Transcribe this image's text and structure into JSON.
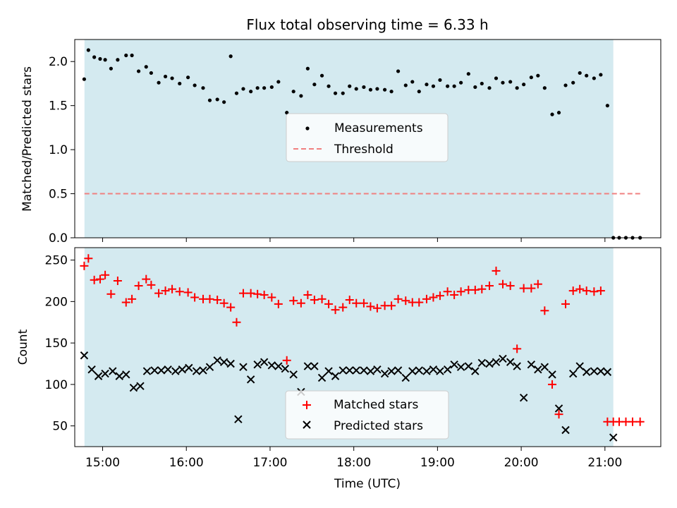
{
  "figure": {
    "title": "Flux total observing time = 6.33 h"
  },
  "chart_data": [
    {
      "type": "scatter",
      "ylabel": "Matched/Predicted stars",
      "ylim": [
        0,
        2.25
      ],
      "xlim": [
        14.667,
        21.667
      ],
      "yticks": [
        0.0,
        0.5,
        1.0,
        1.5,
        2.0
      ],
      "ytick_labels": [
        "0.0",
        "0.5",
        "1.0",
        "1.5",
        "2.0"
      ],
      "shaded_span": [
        14.783,
        21.1
      ],
      "shade_color": "#d4eaf0",
      "legend_position": "center",
      "legend": [
        {
          "label": "Measurements",
          "marker": "dot",
          "color": "#000000"
        },
        {
          "label": "Threshold",
          "marker": "dashed-line",
          "color": "#f08080"
        }
      ],
      "threshold": {
        "name": "Threshold",
        "value": 0.5,
        "x": [
          14.783,
          21.45
        ],
        "color": "#f08080"
      },
      "series": [
        {
          "name": "Measurements",
          "color": "#000000",
          "x": [
            14.78,
            14.83,
            14.9,
            14.97,
            15.03,
            15.1,
            15.18,
            15.28,
            15.35,
            15.43,
            15.52,
            15.58,
            15.67,
            15.75,
            15.83,
            15.92,
            16.02,
            16.1,
            16.2,
            16.28,
            16.37,
            16.45,
            16.53,
            16.6,
            16.68,
            16.77,
            16.85,
            16.93,
            17.02,
            17.1,
            17.2,
            17.28,
            17.37,
            17.45,
            17.53,
            17.62,
            17.7,
            17.78,
            17.87,
            17.95,
            18.03,
            18.12,
            18.2,
            18.28,
            18.37,
            18.45,
            18.53,
            18.62,
            18.7,
            18.78,
            18.87,
            18.95,
            19.03,
            19.12,
            19.2,
            19.28,
            19.37,
            19.45,
            19.53,
            19.62,
            19.7,
            19.78,
            19.87,
            19.95,
            20.03,
            20.12,
            20.2,
            20.28,
            20.37,
            20.45,
            20.53,
            20.62,
            20.7,
            20.78,
            20.87,
            20.95,
            21.03,
            21.1,
            21.17,
            21.25,
            21.33,
            21.42
          ],
          "y": [
            1.8,
            2.13,
            2.05,
            2.03,
            2.02,
            1.92,
            2.02,
            2.07,
            2.07,
            1.89,
            1.94,
            1.87,
            1.76,
            1.83,
            1.81,
            1.75,
            1.82,
            1.73,
            1.7,
            1.56,
            1.57,
            1.54,
            2.06,
            1.64,
            1.69,
            1.66,
            1.7,
            1.7,
            1.71,
            1.77,
            1.42,
            1.66,
            1.61,
            1.92,
            1.74,
            1.84,
            1.72,
            1.64,
            1.64,
            1.72,
            1.69,
            1.71,
            1.68,
            1.69,
            1.68,
            1.66,
            1.89,
            1.73,
            1.77,
            1.66,
            1.74,
            1.72,
            1.79,
            1.72,
            1.72,
            1.76,
            1.86,
            1.71,
            1.75,
            1.7,
            1.81,
            1.76,
            1.77,
            1.7,
            1.74,
            1.82,
            1.84,
            1.7,
            1.4,
            1.42,
            1.73,
            1.76,
            1.87,
            1.84,
            1.81,
            1.85,
            1.5,
            0.0,
            0.0,
            0.0,
            0.0,
            0.0
          ]
        }
      ]
    },
    {
      "type": "scatter",
      "xlabel": "Time (UTC)",
      "ylabel": "Count",
      "ylim": [
        25,
        265
      ],
      "xlim": [
        14.667,
        21.667
      ],
      "yticks": [
        50,
        100,
        150,
        200,
        250
      ],
      "ytick_labels": [
        "50",
        "100",
        "150",
        "200",
        "250"
      ],
      "xticks": [
        15,
        16,
        17,
        18,
        19,
        20,
        21
      ],
      "xtick_labels": [
        "15:00",
        "16:00",
        "17:00",
        "18:00",
        "19:00",
        "20:00",
        "21:00"
      ],
      "shaded_span": [
        14.783,
        21.1
      ],
      "shade_color": "#d4eaf0",
      "legend_position": "lower center",
      "legend": [
        {
          "label": "Matched stars",
          "marker": "plus",
          "color": "#ff0000"
        },
        {
          "label": "Predicted stars",
          "marker": "x",
          "color": "#000000"
        }
      ],
      "series": [
        {
          "name": "Matched stars",
          "marker": "plus",
          "color": "#ff0000",
          "x": [
            14.78,
            14.83,
            14.9,
            14.97,
            15.03,
            15.1,
            15.18,
            15.28,
            15.35,
            15.43,
            15.52,
            15.58,
            15.67,
            15.75,
            15.83,
            15.92,
            16.02,
            16.1,
            16.2,
            16.28,
            16.37,
            16.45,
            16.53,
            16.6,
            16.68,
            16.77,
            16.85,
            16.93,
            17.02,
            17.1,
            17.2,
            17.28,
            17.37,
            17.45,
            17.53,
            17.62,
            17.7,
            17.78,
            17.87,
            17.95,
            18.03,
            18.12,
            18.2,
            18.28,
            18.37,
            18.45,
            18.53,
            18.62,
            18.7,
            18.78,
            18.87,
            18.95,
            19.03,
            19.12,
            19.2,
            19.28,
            19.37,
            19.45,
            19.53,
            19.62,
            19.7,
            19.78,
            19.87,
            19.95,
            20.03,
            20.12,
            20.2,
            20.28,
            20.37,
            20.45,
            20.53,
            20.62,
            20.7,
            20.78,
            20.87,
            20.95,
            21.03,
            21.1,
            21.17,
            21.25,
            21.33,
            21.42
          ],
          "y": [
            243,
            252,
            226,
            227,
            232,
            209,
            225,
            199,
            203,
            219,
            227,
            220,
            210,
            213,
            215,
            212,
            211,
            205,
            203,
            203,
            202,
            198,
            193,
            175,
            210,
            210,
            209,
            208,
            205,
            197,
            129,
            201,
            198,
            208,
            202,
            203,
            197,
            190,
            193,
            202,
            198,
            198,
            194,
            192,
            195,
            195,
            203,
            201,
            199,
            199,
            203,
            205,
            207,
            212,
            208,
            212,
            214,
            214,
            215,
            219,
            237,
            221,
            219,
            143,
            216,
            216,
            221,
            189,
            100,
            64,
            197,
            213,
            215,
            213,
            212,
            213,
            55,
            55,
            55,
            55,
            55,
            55
          ]
        },
        {
          "name": "Predicted stars",
          "marker": "x",
          "color": "#000000",
          "x": [
            14.78,
            14.87,
            14.95,
            15.03,
            15.12,
            15.2,
            15.28,
            15.37,
            15.45,
            15.53,
            15.62,
            15.7,
            15.78,
            15.87,
            15.95,
            16.03,
            16.12,
            16.2,
            16.28,
            16.37,
            16.45,
            16.53,
            16.62,
            16.68,
            16.77,
            16.85,
            16.93,
            17.02,
            17.1,
            17.18,
            17.28,
            17.37,
            17.45,
            17.53,
            17.62,
            17.7,
            17.78,
            17.87,
            17.95,
            18.03,
            18.12,
            18.2,
            18.28,
            18.37,
            18.45,
            18.53,
            18.62,
            18.7,
            18.78,
            18.87,
            18.95,
            19.03,
            19.12,
            19.2,
            19.28,
            19.37,
            19.45,
            19.53,
            19.62,
            19.7,
            19.78,
            19.87,
            19.95,
            20.03,
            20.12,
            20.2,
            20.28,
            20.37,
            20.45,
            20.53,
            20.62,
            20.7,
            20.78,
            20.87,
            20.95,
            21.03,
            21.1
          ],
          "y": [
            135,
            118,
            110,
            113,
            116,
            110,
            112,
            96,
            98,
            116,
            117,
            117,
            118,
            116,
            118,
            120,
            116,
            117,
            121,
            129,
            127,
            125,
            58,
            121,
            106,
            124,
            127,
            123,
            122,
            119,
            112,
            91,
            122,
            122,
            108,
            116,
            110,
            117,
            117,
            117,
            117,
            116,
            118,
            113,
            116,
            117,
            108,
            116,
            117,
            116,
            118,
            116,
            118,
            124,
            121,
            122,
            116,
            126,
            125,
            127,
            131,
            127,
            122,
            84,
            124,
            118,
            121,
            112,
            71,
            45,
            113,
            122,
            115,
            116,
            116,
            115,
            36
          ]
        }
      ]
    }
  ]
}
